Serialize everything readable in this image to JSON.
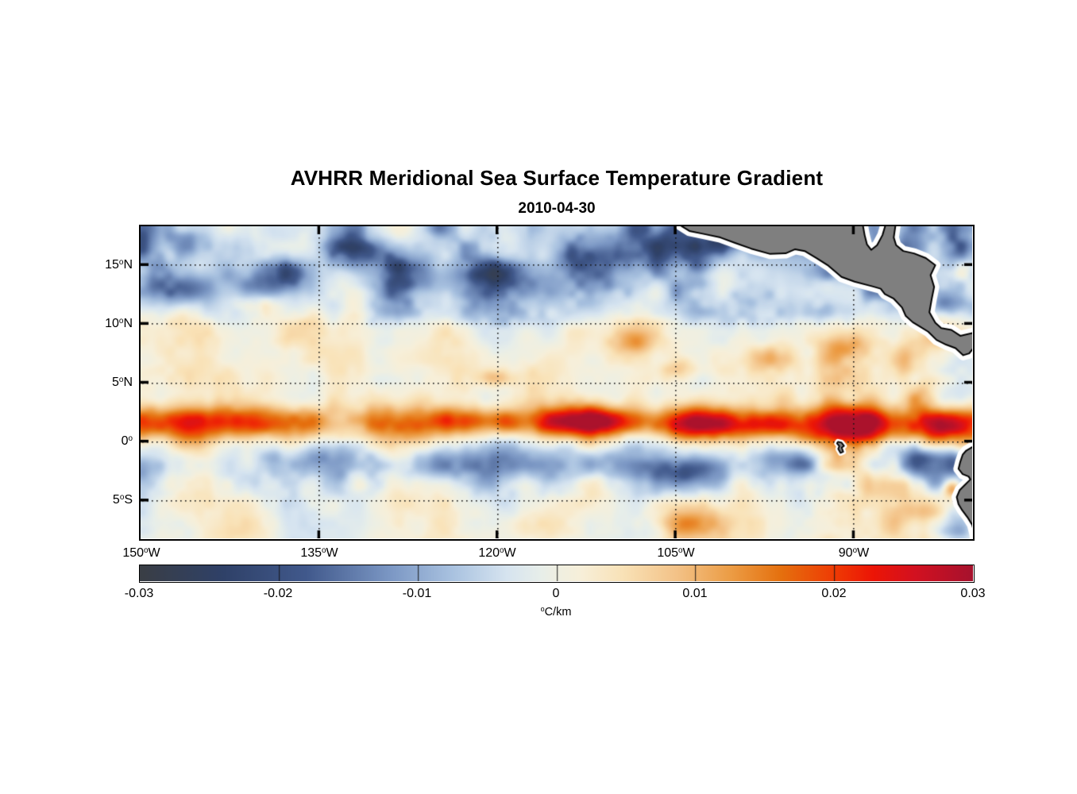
{
  "title": "AVHRR Meridional Sea Surface Temperature Gradient",
  "subtitle": "2010-04-30",
  "chart_data": {
    "type": "heatmap",
    "title": "AVHRR Meridional Sea Surface Temperature Gradient",
    "subtitle": "2010-04-30",
    "colorbar_label_sup": "o",
    "colorbar_label_unit": "C/km",
    "lon_range": [
      -150,
      -80
    ],
    "lat_range": [
      -8.25,
      18.25
    ],
    "grid": "dotted",
    "x_ticks": [
      {
        "deg": "150",
        "sup": "o",
        "hem": "W",
        "lon": -150
      },
      {
        "deg": "135",
        "sup": "o",
        "hem": "W",
        "lon": -135
      },
      {
        "deg": "120",
        "sup": "o",
        "hem": "W",
        "lon": -120
      },
      {
        "deg": "105",
        "sup": "o",
        "hem": "W",
        "lon": -105
      },
      {
        "deg": "90",
        "sup": "o",
        "hem": "W",
        "lon": -90
      }
    ],
    "y_ticks": [
      {
        "deg": "15",
        "sup": "o",
        "hem": "N",
        "lat": 15
      },
      {
        "deg": "10",
        "sup": "o",
        "hem": "N",
        "lat": 10
      },
      {
        "deg": "5",
        "sup": "o",
        "hem": "N",
        "lat": 5
      },
      {
        "deg": "0",
        "sup": "o",
        "hem": "",
        "lat": 0
      },
      {
        "deg": "5",
        "sup": "o",
        "hem": "S",
        "lat": -5
      }
    ],
    "colorbar": {
      "min": -0.03,
      "max": 0.03,
      "tick_labels": [
        "-0.03",
        "-0.02",
        "-0.01",
        "0",
        "0.01",
        "0.02",
        "0.03"
      ],
      "tick_values": [
        -0.03,
        -0.02,
        -0.01,
        0,
        0.01,
        0.02,
        0.03
      ]
    },
    "colormap_stops": [
      [
        0.0,
        "#3a3e45"
      ],
      [
        0.1,
        "#2f4168"
      ],
      [
        0.2,
        "#41598c"
      ],
      [
        0.3,
        "#7b97c4"
      ],
      [
        0.375,
        "#a9c2e0"
      ],
      [
        0.44,
        "#d6e4f0"
      ],
      [
        0.48,
        "#e7eeea"
      ],
      [
        0.5,
        "#efefe2"
      ],
      [
        0.53,
        "#f7efd9"
      ],
      [
        0.58,
        "#f9e2b7"
      ],
      [
        0.645,
        "#f3c287"
      ],
      [
        0.71,
        "#ec9c44"
      ],
      [
        0.77,
        "#e5700e"
      ],
      [
        0.835,
        "#ef3a04"
      ],
      [
        0.88,
        "#ec1506"
      ],
      [
        0.93,
        "#d31120"
      ],
      [
        1.0,
        "#a6122e"
      ]
    ],
    "colors": {
      "land": "#7f7f7f",
      "coastline": "#000000",
      "coast_halo": "#ffffff",
      "gridline": "#141414"
    },
    "field_model": {
      "seed": 20100430,
      "octaves": [
        [
          21,
          0.0075
        ],
        [
          9,
          0.0042
        ],
        [
          4,
          0.0016
        ]
      ],
      "north_bias": -0.0052,
      "eq_band": {
        "lat": 1.55,
        "sigma": 1.05,
        "amp": 0.0185
      },
      "south_band": {
        "lat": -2.3,
        "sigma": 1.5,
        "amp": -0.005
      },
      "mid_band": {
        "lat": 6.3,
        "sigma": 2.2,
        "amp": 0.0016
      },
      "blobs": [
        [
          -146.5,
          13.0,
          2.0,
          1.0,
          -0.011
        ],
        [
          -139.5,
          13.6,
          2.6,
          1.2,
          -0.013
        ],
        [
          -131.5,
          15.9,
          2.2,
          1.0,
          -0.012
        ],
        [
          -125.5,
          14.2,
          2.8,
          1.1,
          -0.011
        ],
        [
          -117.5,
          13.4,
          2.4,
          1.0,
          -0.012
        ],
        [
          -112.0,
          15.6,
          2.6,
          1.2,
          -0.012
        ],
        [
          -105.5,
          16.4,
          2.4,
          1.2,
          -0.013
        ],
        [
          -99.6,
          17.4,
          2.0,
          1.0,
          -0.015
        ],
        [
          -94.6,
          16.6,
          1.5,
          0.9,
          -0.011
        ],
        [
          -87.6,
          13.9,
          1.2,
          0.7,
          -0.008
        ],
        [
          -82.2,
          11.7,
          1.0,
          0.6,
          -0.01
        ],
        [
          -80.6,
          16.5,
          0.9,
          0.7,
          -0.009
        ],
        [
          -80.4,
          14.4,
          0.8,
          0.8,
          0.009
        ],
        [
          -139.5,
          11.7,
          1.6,
          0.6,
          0.007
        ],
        [
          -120.3,
          5.4,
          0.9,
          0.55,
          0.009
        ],
        [
          -108.5,
          8.4,
          1.3,
          0.7,
          0.0085
        ],
        [
          -104.6,
          6.1,
          1.1,
          0.6,
          0.007
        ],
        [
          -97.6,
          7.1,
          1.3,
          0.8,
          0.008
        ],
        [
          -90.6,
          7.9,
          1.3,
          0.8,
          0.009
        ],
        [
          -85.6,
          6.6,
          1.0,
          1.2,
          0.009
        ],
        [
          -84.1,
          3.9,
          1.1,
          1.0,
          0.01
        ],
        [
          -122.0,
          1.7,
          2.6,
          0.75,
          0.009
        ],
        [
          -112.5,
          1.8,
          3.0,
          0.8,
          0.011
        ],
        [
          -103.0,
          1.5,
          2.6,
          0.85,
          0.012
        ],
        [
          -97.0,
          1.4,
          2.4,
          0.8,
          0.011
        ],
        [
          -88.5,
          1.3,
          3.0,
          1.0,
          0.013
        ],
        [
          -82.6,
          0.9,
          2.2,
          1.3,
          0.015
        ],
        [
          -134.0,
          -1.7,
          2.6,
          0.9,
          -0.008
        ],
        [
          -124.5,
          -2.1,
          3.0,
          0.9,
          -0.009
        ],
        [
          -113.5,
          -1.9,
          2.8,
          0.9,
          -0.009
        ],
        [
          -104.6,
          -2.5,
          2.2,
          0.8,
          -0.008
        ],
        [
          -95.6,
          -1.7,
          1.8,
          0.8,
          -0.009
        ],
        [
          -83.6,
          -1.8,
          1.6,
          1.0,
          -0.012
        ],
        [
          -80.9,
          -7.4,
          1.6,
          1.2,
          -0.014
        ],
        [
          -85.1,
          -5.7,
          2.0,
          0.9,
          0.0085
        ],
        [
          -104.0,
          -7.0,
          2.6,
          0.9,
          0.008
        ],
        [
          -81.7,
          -4.0,
          0.55,
          0.6,
          0.017
        ]
      ]
    },
    "land_polygons": {
      "central_america": [
        [
          -104.6,
          18.35
        ],
        [
          -103.8,
          17.85
        ],
        [
          -102.6,
          17.6
        ],
        [
          -101.2,
          17.3
        ],
        [
          -100.0,
          16.85
        ],
        [
          -98.6,
          16.35
        ],
        [
          -97.0,
          15.9
        ],
        [
          -95.7,
          15.95
        ],
        [
          -94.9,
          16.3
        ],
        [
          -94.1,
          16.15
        ],
        [
          -93.1,
          15.55
        ],
        [
          -92.1,
          14.9
        ],
        [
          -91.0,
          13.95
        ],
        [
          -89.9,
          13.55
        ],
        [
          -88.4,
          13.15
        ],
        [
          -87.7,
          12.95
        ],
        [
          -87.35,
          12.5
        ],
        [
          -86.6,
          12.1
        ],
        [
          -85.9,
          11.35
        ],
        [
          -85.6,
          10.65
        ],
        [
          -85.0,
          10.1
        ],
        [
          -84.5,
          9.8
        ],
        [
          -83.7,
          9.3
        ],
        [
          -83.0,
          8.6
        ],
        [
          -82.2,
          8.2
        ],
        [
          -81.4,
          7.9
        ],
        [
          -80.75,
          7.3
        ],
        [
          -80.25,
          7.45
        ],
        [
          -79.9,
          7.9
        ],
        [
          -79.9,
          9.2
        ],
        [
          -81.0,
          8.95
        ],
        [
          -81.75,
          9.45
        ],
        [
          -82.6,
          9.6
        ],
        [
          -83.1,
          10.05
        ],
        [
          -83.6,
          10.95
        ],
        [
          -83.4,
          12.1
        ],
        [
          -83.2,
          13.1
        ],
        [
          -83.5,
          14.1
        ],
        [
          -83.1,
          14.95
        ],
        [
          -83.9,
          15.55
        ],
        [
          -84.9,
          15.95
        ],
        [
          -85.8,
          16.15
        ],
        [
          -86.4,
          16.65
        ],
        [
          -86.6,
          17.3
        ],
        [
          -86.45,
          18.35
        ],
        [
          -87.3,
          18.35
        ],
        [
          -87.55,
          17.5
        ],
        [
          -88.0,
          16.65
        ],
        [
          -88.5,
          16.25
        ],
        [
          -88.85,
          16.7
        ],
        [
          -89.05,
          17.5
        ],
        [
          -89.2,
          18.35
        ]
      ],
      "south_america": [
        [
          -79.9,
          -0.45
        ],
        [
          -80.5,
          -0.8
        ],
        [
          -80.8,
          -1.15
        ],
        [
          -81.0,
          -1.75
        ],
        [
          -81.15,
          -2.35
        ],
        [
          -80.8,
          -2.8
        ],
        [
          -80.3,
          -3.0
        ],
        [
          -80.15,
          -3.25
        ],
        [
          -80.55,
          -3.65
        ],
        [
          -81.05,
          -4.15
        ],
        [
          -81.3,
          -4.75
        ],
        [
          -81.15,
          -5.35
        ],
        [
          -80.85,
          -5.85
        ],
        [
          -80.4,
          -6.45
        ],
        [
          -80.0,
          -7.1
        ],
        [
          -79.8,
          -7.9
        ],
        [
          -79.75,
          -8.5
        ],
        [
          -78.5,
          -8.5
        ],
        [
          -78.5,
          -0.2
        ]
      ],
      "galapagos": [
        [
          -91.3,
          -0.05
        ],
        [
          -91.0,
          -0.12
        ],
        [
          -90.78,
          -0.4
        ],
        [
          -90.98,
          -0.55
        ],
        [
          -90.85,
          -0.9
        ],
        [
          -91.08,
          -1.0
        ],
        [
          -91.28,
          -0.65
        ],
        [
          -91.18,
          -0.42
        ],
        [
          -91.38,
          -0.18
        ]
      ]
    }
  }
}
